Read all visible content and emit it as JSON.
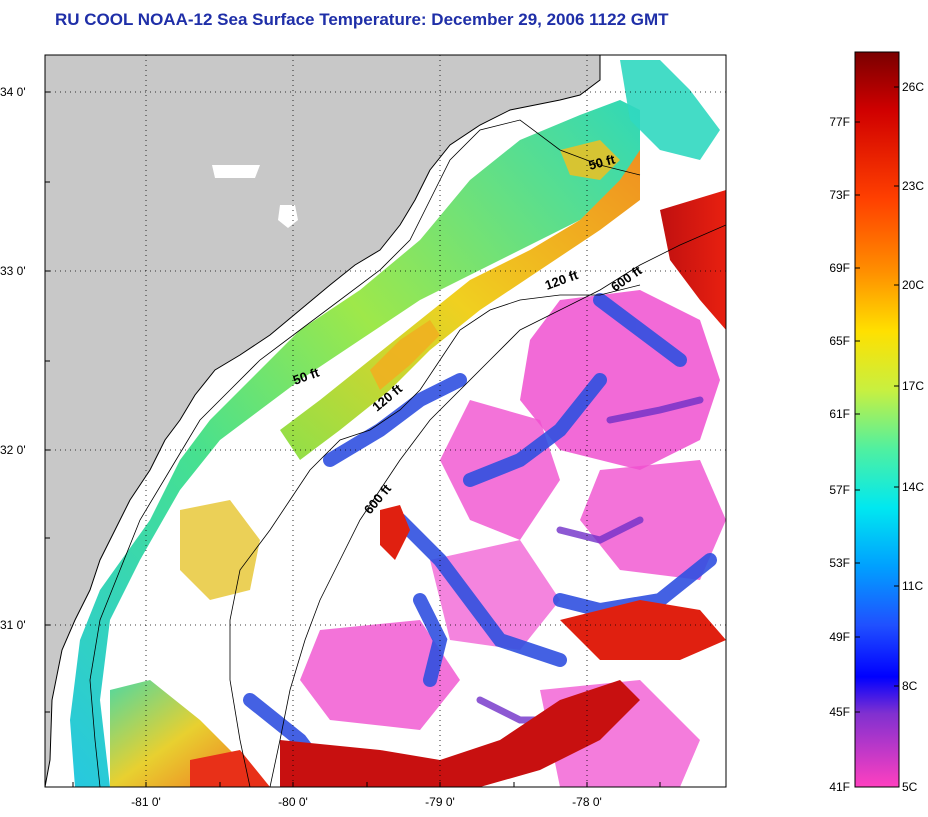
{
  "title": "RU COOL  NOAA-12  Sea Surface Temperature:  December 29, 2006 1122 GMT",
  "map": {
    "lat_labels": [
      "34 0'",
      "33 0'",
      "32 0'",
      "31 0'"
    ],
    "lon_labels": [
      "-81 0'",
      "-80 0'",
      "-79 0'",
      "-78 0'"
    ],
    "depth_labels": [
      "50 ft",
      "120 ft",
      "600 ft",
      "50 ft",
      "120 ft",
      "600 ft"
    ],
    "grid": true,
    "colors": {
      "land": "#c8c8c8",
      "cloud": "#ffffff"
    }
  },
  "colorbar": {
    "fahrenheit_labels": [
      "77F",
      "73F",
      "69F",
      "65F",
      "61F",
      "57F",
      "53F",
      "49F",
      "45F",
      "41F"
    ],
    "celsius_labels": [
      "26C",
      "23C",
      "20C",
      "17C",
      "14C",
      "11C",
      "8C",
      "5C"
    ]
  }
}
